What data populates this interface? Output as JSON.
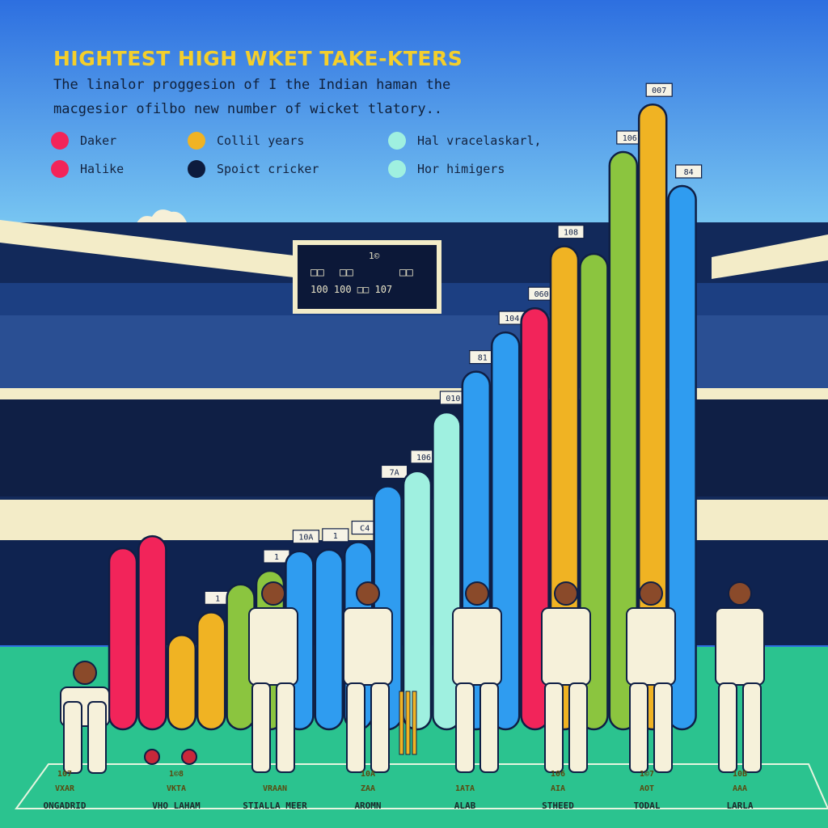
{
  "title": "HIGHTEST HIGH WKET TAKE-KTERS",
  "subtitle_lines": [
    "The linalor proggesion of I the Indian haman the",
    "macgesior ofilbo new number of wicket tlatory.."
  ],
  "legend": [
    {
      "label": "Daker",
      "color": "#f2245a"
    },
    {
      "label": "Halike",
      "color": "#f2245a"
    },
    {
      "label": "Collil years",
      "color": "#f0b323"
    },
    {
      "label": "Spoict cricker",
      "color": "#0d1b3d"
    },
    {
      "label": "Hal vracelaskarl,",
      "color": "#9ff0e0"
    },
    {
      "label": "Hor himigers",
      "color": "#9ff0e0"
    }
  ],
  "scoreboard": {
    "line1": [
      "□□",
      "□□",
      "1©",
      "□□"
    ],
    "line2": "100 100  □□   107"
  },
  "colors": {
    "sky_top": "#2d6fe0",
    "sky_bottom": "#7fd4f5",
    "field": "#2bc38f",
    "stadium_dark": "#0f1f45",
    "stadium_panel": "#f3ecc8"
  },
  "chart_data": {
    "type": "bar",
    "title": "HIGHTEST HIGH WKET TAKE-KTERS",
    "bars": [
      {
        "value": 240,
        "color": "#f2245a",
        "label": ""
      },
      {
        "value": 256,
        "color": "#f2245a",
        "label": ""
      },
      {
        "value": 125,
        "color": "#f0b323",
        "label": ""
      },
      {
        "value": 155,
        "color": "#f0b323",
        "label": "1"
      },
      {
        "value": 192,
        "color": "#8bc53f",
        "label": ""
      },
      {
        "value": 210,
        "color": "#8bc53f",
        "label": "1"
      },
      {
        "value": 236,
        "color": "#2f9cf0",
        "label": "10A"
      },
      {
        "value": 238,
        "color": "#2f9cf0",
        "label": "1"
      },
      {
        "value": 248,
        "color": "#2f9cf0",
        "label": "C4"
      },
      {
        "value": 322,
        "color": "#2f9cf0",
        "label": "7A"
      },
      {
        "value": 342,
        "color": "#9ff0e0",
        "label": "106"
      },
      {
        "value": 420,
        "color": "#9ff0e0",
        "label": "010"
      },
      {
        "value": 474,
        "color": "#2f9cf0",
        "label": "81"
      },
      {
        "value": 526,
        "color": "#2f9cf0",
        "label": "104"
      },
      {
        "value": 558,
        "color": "#f2245a",
        "label": "060"
      },
      {
        "value": 640,
        "color": "#f0b323",
        "label": "108"
      },
      {
        "value": 630,
        "color": "#8bc53f",
        "label": ""
      },
      {
        "value": 765,
        "color": "#8bc53f",
        "label": "106"
      },
      {
        "value": 828,
        "color": "#f0b323",
        "label": "007"
      },
      {
        "value": 720,
        "color": "#2f9cf0",
        "label": "84"
      }
    ],
    "ylim": [
      0,
      900
    ],
    "players": [
      {
        "value": "107",
        "name": "VXAR",
        "team": "ONGADRID"
      },
      {
        "value": "1©8",
        "name": "VKTA",
        "team": "VHO LAHAM"
      },
      {
        "value": "",
        "name": "VRAAN",
        "team": "STIALLA MEER"
      },
      {
        "value": "10A",
        "name": "ZAA",
        "team": "AROMN"
      },
      {
        "value": "",
        "name": "1ATA",
        "team": "ALAB"
      },
      {
        "value": "106",
        "name": "AIA",
        "team": "STHEED"
      },
      {
        "value": "1©7",
        "name": "AOT",
        "team": "TODAL"
      },
      {
        "value": "10B",
        "name": "AAA",
        "team": "LARLA"
      }
    ]
  }
}
